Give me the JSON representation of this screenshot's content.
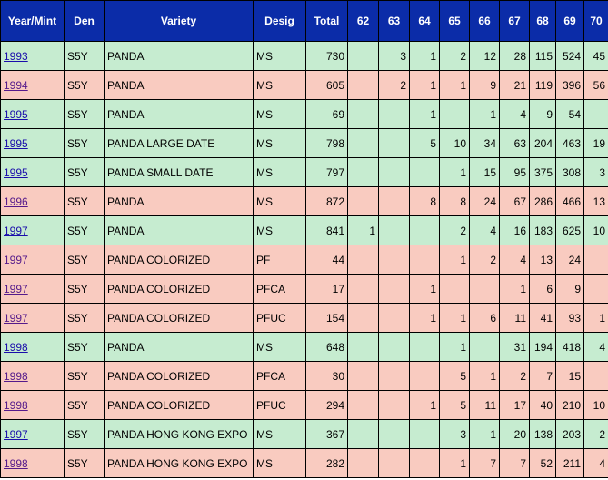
{
  "headers": [
    "Year/Mint",
    "Den",
    "Variety",
    "Desig",
    "Total",
    "62",
    "63",
    "64",
    "65",
    "66",
    "67",
    "68",
    "69",
    "70"
  ],
  "rows": [
    {
      "year": "1993",
      "visited": false,
      "den": "S5Y",
      "variety": "PANDA",
      "desig": "MS",
      "total": "730",
      "g": [
        "",
        "3",
        "1",
        "2",
        "12",
        "28",
        "115",
        "524",
        "45"
      ],
      "color": "green"
    },
    {
      "year": "1994",
      "visited": true,
      "den": "S5Y",
      "variety": "PANDA",
      "desig": "MS",
      "total": "605",
      "g": [
        "",
        "2",
        "1",
        "1",
        "9",
        "21",
        "119",
        "396",
        "56"
      ],
      "color": "pink"
    },
    {
      "year": "1995",
      "visited": false,
      "den": "S5Y",
      "variety": "PANDA",
      "desig": "MS",
      "total": "69",
      "g": [
        "",
        "",
        "1",
        "",
        "1",
        "4",
        "9",
        "54",
        ""
      ],
      "color": "green"
    },
    {
      "year": "1995",
      "visited": false,
      "den": "S5Y",
      "variety": "PANDA LARGE DATE",
      "desig": "MS",
      "total": "798",
      "g": [
        "",
        "",
        "5",
        "10",
        "34",
        "63",
        "204",
        "463",
        "19"
      ],
      "color": "green"
    },
    {
      "year": "1995",
      "visited": false,
      "den": "S5Y",
      "variety": "PANDA SMALL DATE",
      "desig": "MS",
      "total": "797",
      "g": [
        "",
        "",
        "",
        "1",
        "15",
        "95",
        "375",
        "308",
        "3"
      ],
      "color": "green"
    },
    {
      "year": "1996",
      "visited": true,
      "den": "S5Y",
      "variety": "PANDA",
      "desig": "MS",
      "total": "872",
      "g": [
        "",
        "",
        "8",
        "8",
        "24",
        "67",
        "286",
        "466",
        "13"
      ],
      "color": "pink"
    },
    {
      "year": "1997",
      "visited": false,
      "den": "S5Y",
      "variety": "PANDA",
      "desig": "MS",
      "total": "841",
      "g": [
        "1",
        "",
        "",
        "2",
        "4",
        "16",
        "183",
        "625",
        "10"
      ],
      "color": "green"
    },
    {
      "year": "1997",
      "visited": true,
      "den": "S5Y",
      "variety": "PANDA COLORIZED",
      "desig": "PF",
      "total": "44",
      "g": [
        "",
        "",
        "",
        "1",
        "2",
        "4",
        "13",
        "24",
        ""
      ],
      "color": "pink"
    },
    {
      "year": "1997",
      "visited": true,
      "den": "S5Y",
      "variety": "PANDA COLORIZED",
      "desig": "PFCA",
      "total": "17",
      "g": [
        "",
        "",
        "1",
        "",
        "",
        "1",
        "6",
        "9",
        ""
      ],
      "color": "pink"
    },
    {
      "year": "1997",
      "visited": true,
      "den": "S5Y",
      "variety": "PANDA COLORIZED",
      "desig": "PFUC",
      "total": "154",
      "g": [
        "",
        "",
        "1",
        "1",
        "6",
        "11",
        "41",
        "93",
        "1"
      ],
      "color": "pink"
    },
    {
      "year": "1998",
      "visited": false,
      "den": "S5Y",
      "variety": "PANDA",
      "desig": "MS",
      "total": "648",
      "g": [
        "",
        "",
        "",
        "1",
        "",
        "31",
        "194",
        "418",
        "4"
      ],
      "color": "green"
    },
    {
      "year": "1998",
      "visited": true,
      "den": "S5Y",
      "variety": "PANDA COLORIZED",
      "desig": "PFCA",
      "total": "30",
      "g": [
        "",
        "",
        "",
        "5",
        "1",
        "2",
        "7",
        "15",
        ""
      ],
      "color": "pink"
    },
    {
      "year": "1998",
      "visited": true,
      "den": "S5Y",
      "variety": "PANDA COLORIZED",
      "desig": "PFUC",
      "total": "294",
      "g": [
        "",
        "",
        "1",
        "5",
        "11",
        "17",
        "40",
        "210",
        "10"
      ],
      "color": "pink"
    },
    {
      "year": "1997",
      "visited": false,
      "den": "S5Y",
      "variety": "PANDA HONG KONG EXPO",
      "desig": "MS",
      "total": "367",
      "g": [
        "",
        "",
        "",
        "3",
        "1",
        "20",
        "138",
        "203",
        "2"
      ],
      "color": "green"
    },
    {
      "year": "1998",
      "visited": true,
      "den": "S5Y",
      "variety": "PANDA HONG KONG EXPO",
      "desig": "MS",
      "total": "282",
      "g": [
        "",
        "",
        "",
        "1",
        "7",
        "7",
        "52",
        "211",
        "4"
      ],
      "color": "pink"
    }
  ]
}
